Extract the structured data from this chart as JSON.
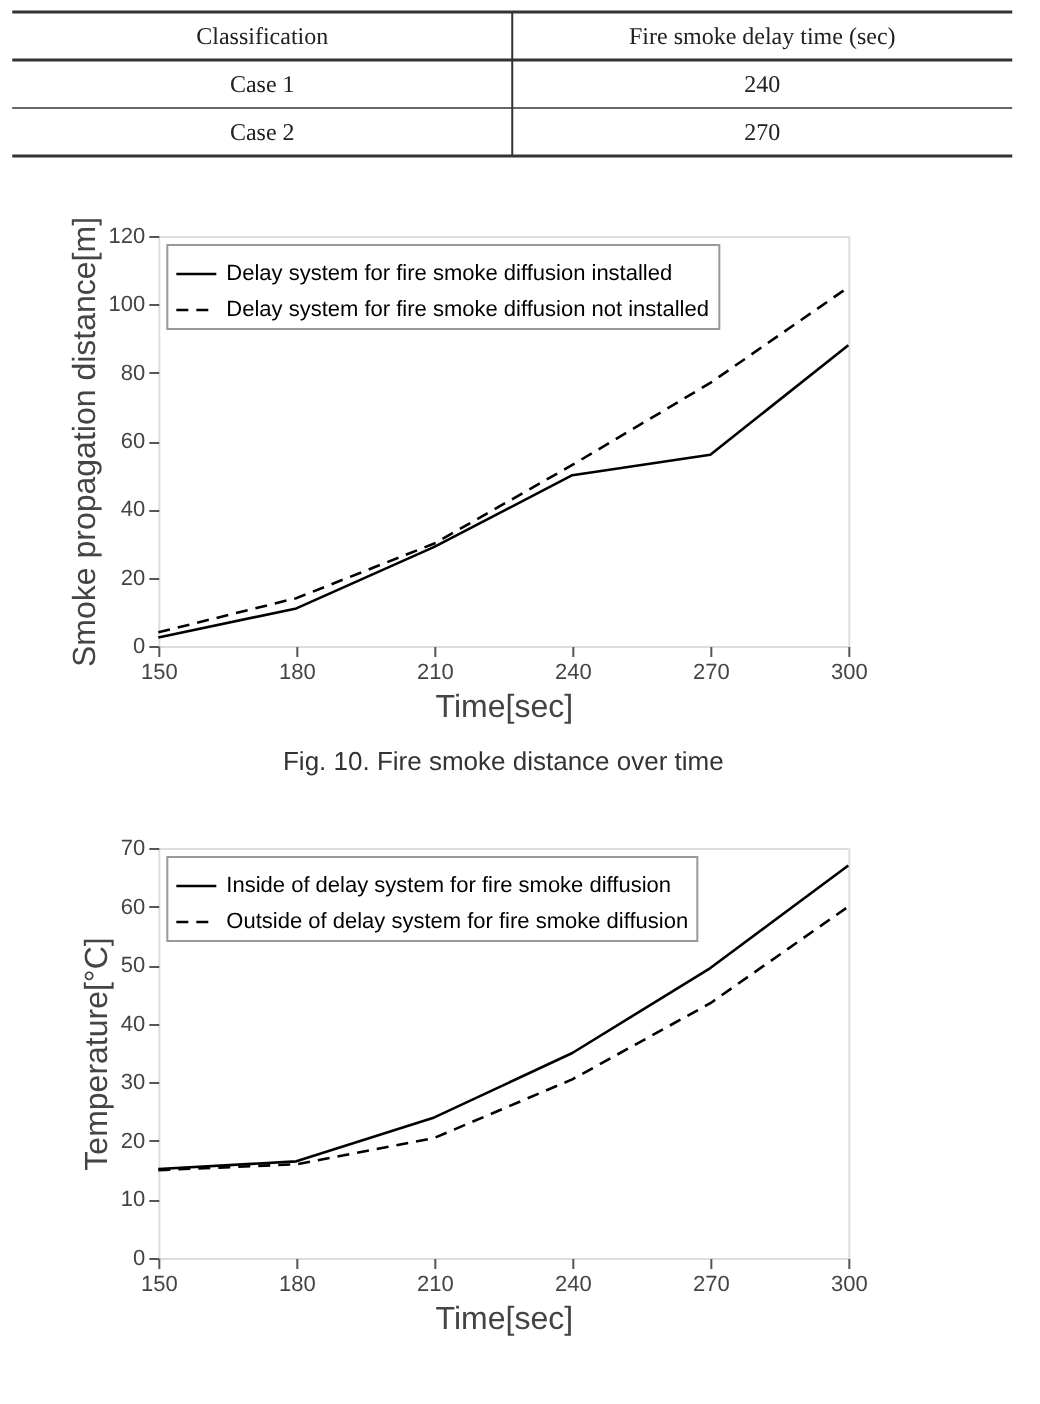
{
  "chart_data": [
    {
      "type": "other",
      "annotations": [
        "Classification",
        "Fire smoke delay time (sec)",
        "Case 1",
        "240",
        "Case 2",
        "270"
      ]
    },
    {
      "type": "line",
      "title": "Fig. 10. Fire smoke distance over time",
      "xlabel": "Time[sec]",
      "ylabel": "Smoke propagation distance[m]",
      "x": [
        150,
        180,
        210,
        240,
        270,
        300
      ],
      "xlim": [
        150,
        300
      ],
      "xticks": [
        150,
        180,
        210,
        240,
        270,
        300
      ],
      "ylim": [
        0,
        120
      ],
      "yticks": [
        0,
        20,
        40,
        60,
        80,
        100,
        120
      ],
      "grid": false,
      "legend": "top left",
      "series": [
        {
          "name": "Delay system for fire smoke diffusion installed",
          "color": "#000000",
          "line_style": "solid",
          "values": [
            2.5,
            11,
            29,
            50,
            56,
            88
          ]
        },
        {
          "name": "Delay system for fire smoke diffusion not installed",
          "color": "#000000",
          "line_style": "dashed",
          "values": [
            4,
            14,
            30,
            53,
            77,
            105
          ]
        }
      ]
    },
    {
      "type": "line",
      "xlabel": "Time[sec]",
      "ylabel": "Temperature[°C]",
      "x": [
        150,
        180,
        210,
        240,
        270,
        300
      ],
      "xlim": [
        150,
        300
      ],
      "xticks": [
        150,
        180,
        210,
        240,
        270,
        300
      ],
      "ylim": [
        0,
        70
      ],
      "yticks": [
        0,
        10,
        20,
        30,
        40,
        50,
        60,
        70
      ],
      "grid": false,
      "legend": "top left",
      "series": [
        {
          "name": "Inside of delay system for fire smoke diffusion",
          "color": "#000000",
          "line_style": "solid",
          "values": [
            15.2,
            16.5,
            24,
            35,
            49.5,
            67
          ]
        },
        {
          "name": "Outside of delay system for fire smoke diffusion",
          "color": "#000000",
          "line_style": "dashed",
          "values": [
            15,
            16,
            20.5,
            30.5,
            43.5,
            60
          ]
        }
      ]
    }
  ]
}
